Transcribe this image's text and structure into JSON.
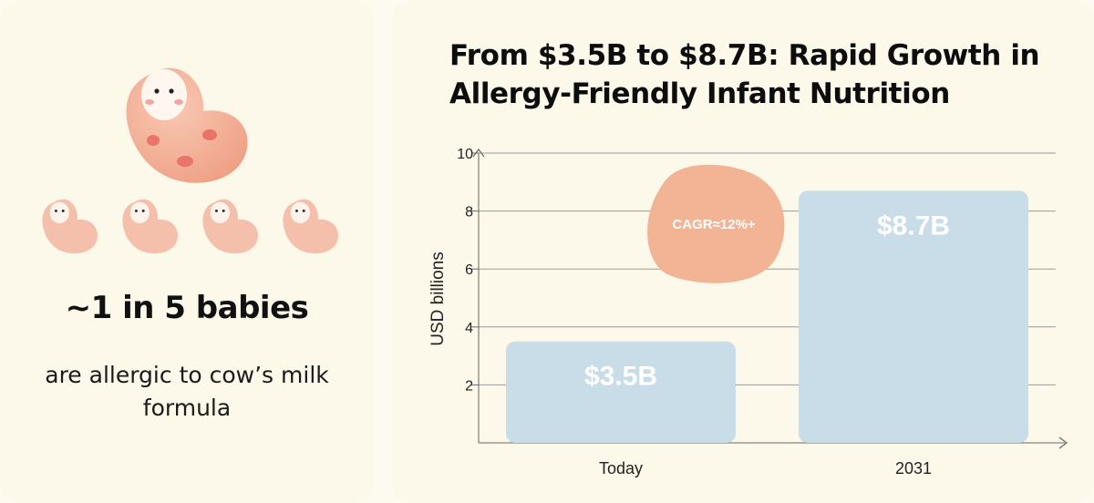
{
  "left_panel": {
    "headline": "~1 in 5 babies",
    "subtext": "are allergic to cow’s milk formula",
    "colors": {
      "baby_body": "#f4b79d",
      "baby_face": "#fff6ef",
      "blush": "#e96a63"
    }
  },
  "chart_data": {
    "type": "bar",
    "title": "From $3.5B to $8.7B: Rapid Growth in Allergy-Friendly Infant Nutrition",
    "ylabel": "USD billions",
    "xlabel": "",
    "categories": [
      "Today",
      "2031"
    ],
    "values": [
      3.5,
      8.7
    ],
    "data_labels": [
      "$3.5B",
      "$8.7B"
    ],
    "ylim": [
      0,
      10
    ],
    "yticks": [
      2,
      4,
      6,
      8,
      10
    ],
    "grid": true,
    "annotation": "CAGR≈12%+",
    "colors": {
      "bar": "#c9dde9",
      "annotation_blob": "#f3b496",
      "grid": "#9a9a9a"
    }
  }
}
